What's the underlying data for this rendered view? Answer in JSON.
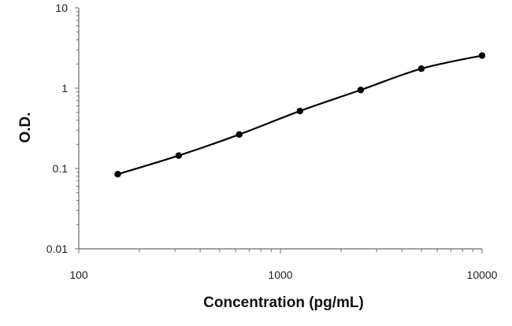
{
  "chart_data": {
    "type": "scatter",
    "title": "",
    "xlabel": "Concentration (pg/mL)",
    "ylabel": "O.D.",
    "x_scale": "log",
    "y_scale": "log",
    "xlim": [
      100,
      10000
    ],
    "ylim": [
      0.01,
      10
    ],
    "x_ticks": [
      100,
      1000,
      10000
    ],
    "x_tick_labels": [
      "100",
      "1000",
      "10000"
    ],
    "y_ticks": [
      0.01,
      0.1,
      1,
      10
    ],
    "y_tick_labels": [
      "0.01",
      "0.1",
      "1",
      "10"
    ],
    "grid": false,
    "legend": "none",
    "series": [
      {
        "x": [
          156,
          313,
          625,
          1250,
          2500,
          5000,
          10000
        ],
        "y": [
          0.085,
          0.145,
          0.265,
          0.52,
          0.95,
          1.75,
          2.55
        ],
        "marker": "circle",
        "connected": true
      }
    ],
    "colors": {
      "series": "#000000",
      "axis": "#6b6b6b"
    }
  }
}
